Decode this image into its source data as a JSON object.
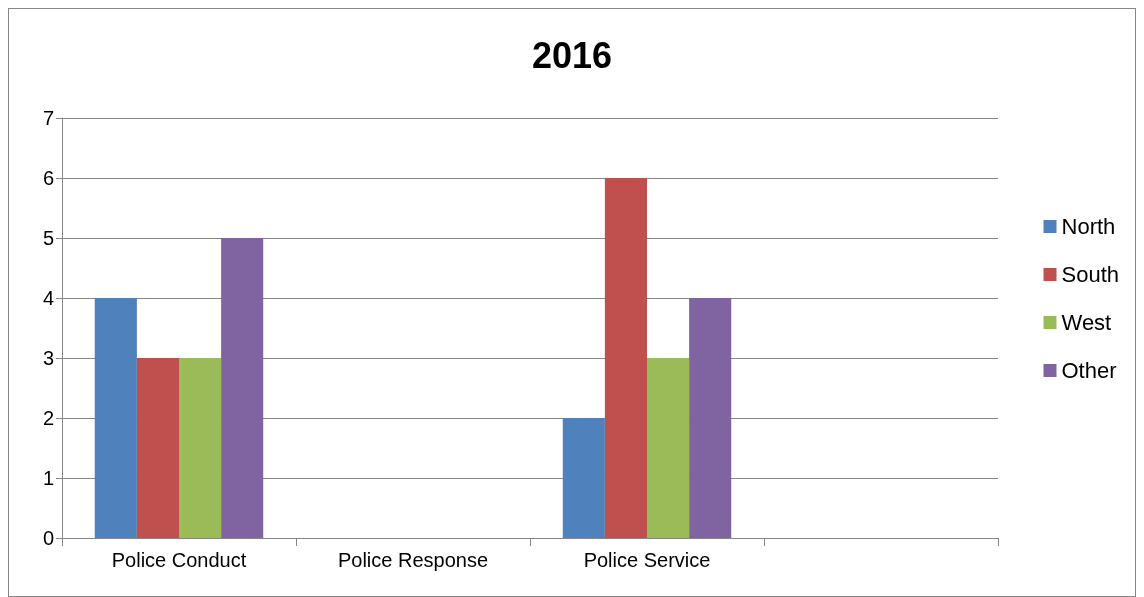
{
  "chart_data": {
    "type": "bar",
    "title": "2016",
    "categories": [
      "Police Conduct",
      "Police Response",
      "Police Service",
      null
    ],
    "series": [
      {
        "name": "North",
        "color": "#4f81bd",
        "values": [
          4,
          null,
          2,
          null
        ]
      },
      {
        "name": "South",
        "color": "#c0504d",
        "values": [
          3,
          null,
          6,
          null
        ]
      },
      {
        "name": "West",
        "color": "#9bbb59",
        "values": [
          3,
          null,
          3,
          null
        ]
      },
      {
        "name": "Other",
        "color": "#8064a2",
        "values": [
          5,
          null,
          4,
          null
        ]
      }
    ],
    "ylim": [
      0,
      7
    ],
    "yticks": [
      0,
      1,
      2,
      3,
      4,
      5,
      6,
      7
    ],
    "grid": "y",
    "legend": "right"
  }
}
